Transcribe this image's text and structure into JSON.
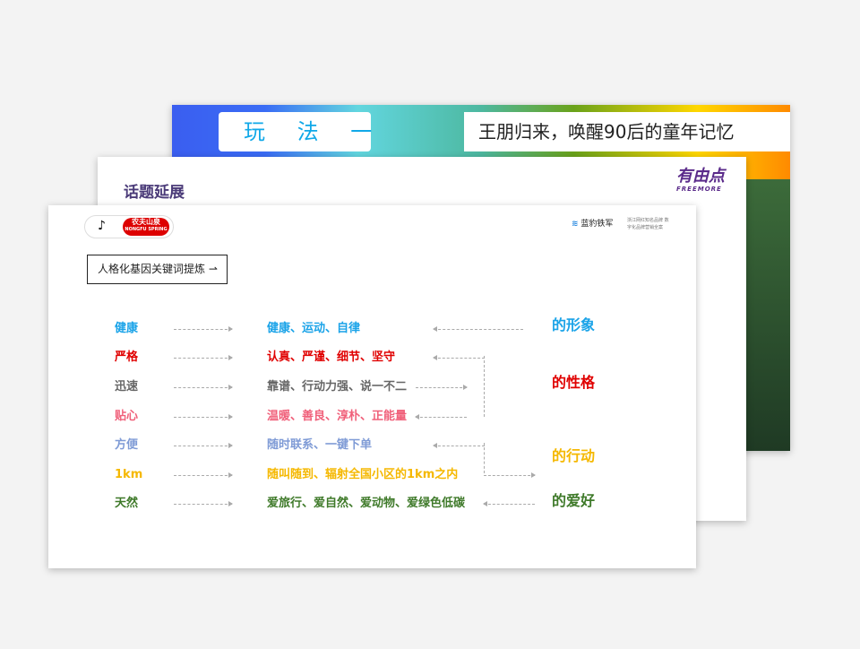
{
  "back_slide": {
    "tag": "玩 法 一",
    "headline": "王朋归来，唤醒90后的童年记忆"
  },
  "middle_slide": {
    "title": "话题延展",
    "logo": "有由点",
    "logo_sub": "FREEMORE"
  },
  "front_slide": {
    "brand": {
      "tiktok": "♪",
      "nongfu": "农夫山泉",
      "nongfu_sub": "NONGFU SPRING"
    },
    "agency": {
      "name": "蓝豹铁军",
      "sub": "浙江网红知名品牌 数字化品牌营销全案"
    },
    "section_label": "人格化基因关键词提炼",
    "rows": [
      {
        "key": "健康",
        "value": "健康、运动、自律",
        "color": "#1aa3e8"
      },
      {
        "key": "严格",
        "value": "认真、严谨、细节、坚守",
        "color": "#e00000"
      },
      {
        "key": "迅速",
        "value": "靠谱、行动力强、说一不二",
        "color": "#666666"
      },
      {
        "key": "贴心",
        "value": "温暖、善良、淳朴、正能量",
        "color": "#f0607a"
      },
      {
        "key": "方便",
        "value": "随时联系、一键下单",
        "color": "#7f9bd6"
      },
      {
        "key": "1km",
        "value": "随叫随到、辐射全国小区的1km之内",
        "color": "#f5b800"
      },
      {
        "key": "天然",
        "value": "爱旅行、爱自然、爱动物、爱绿色低碳",
        "color": "#3f7a2a"
      }
    ],
    "categories": [
      {
        "label": "的形象",
        "color": "#1aa3e8"
      },
      {
        "label": "的性格",
        "color": "#e00000"
      },
      {
        "label": "的行动",
        "color": "#f5b800"
      },
      {
        "label": "的爱好",
        "color": "#3f7a2a"
      }
    ]
  }
}
